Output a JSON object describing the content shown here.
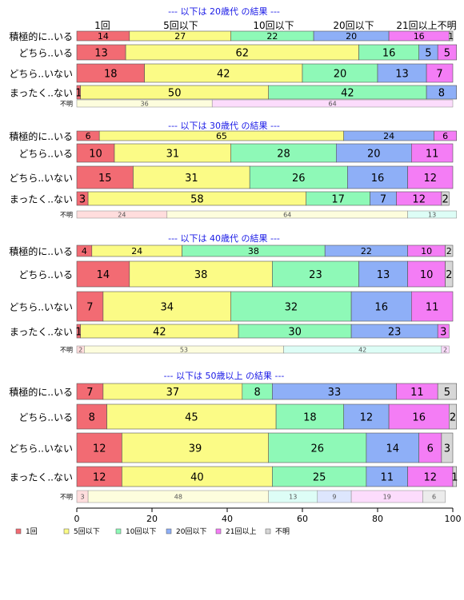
{
  "chart_data": {
    "type": "bar",
    "orientation": "horizontal",
    "stacked": true,
    "xlim": [
      0,
      100
    ],
    "x_ticks": [
      "0",
      "20",
      "40",
      "60",
      "80",
      "100"
    ],
    "top_header": [
      "1回",
      "5回以下",
      "10回以下",
      "20回以下",
      "21回以上不明"
    ],
    "legend": {
      "placement": "bottom",
      "entries": [
        "1回",
        "5回以下",
        "10回以下",
        "20回以下",
        "21回以上",
        "不明"
      ]
    },
    "colors": {
      "1回": "#f26b73",
      "5回以下": "#fbfb86",
      "10回以下": "#8ef9b7",
      "20回以下": "#8eaff7",
      "21回以上": "#f47df5",
      "不明": "#d7d7d7"
    },
    "unknown_row_colors": [
      "#ffdddd",
      "#fdfddd",
      "#ddfdf6",
      "#dde6fd",
      "#fcdcfc",
      "#ececec"
    ],
    "panels": [
      {
        "title": "--- 以下は 20歳代 の結果 ---",
        "rows": [
          {
            "label": "積極的に..いる",
            "values": [
              14,
              27,
              22,
              20,
              16,
              1
            ]
          },
          {
            "label": "どちら..いる",
            "values": [
              13,
              62,
              16,
              5,
              5,
              0
            ]
          },
          {
            "label": "どちら..いない",
            "values": [
              18,
              42,
              20,
              13,
              7,
              0
            ]
          },
          {
            "label": "まったく..ない",
            "values": [
              1,
              50,
              42,
              8,
              0,
              0
            ]
          }
        ],
        "unknown": {
          "label": "不明",
          "values": [
            0,
            36,
            0,
            0,
            64,
            0
          ],
          "value_labels": [
            "",
            "36",
            "",
            "",
            "64",
            ""
          ]
        }
      },
      {
        "title": "--- 以下は 30歳代 の結果 ---",
        "rows": [
          {
            "label": "積極的に..いる",
            "values": [
              6,
              65,
              0,
              24,
              6,
              0
            ]
          },
          {
            "label": "どちら..いる",
            "values": [
              10,
              31,
              28,
              20,
              11,
              0
            ]
          },
          {
            "label": "どちら..いない",
            "values": [
              15,
              31,
              26,
              16,
              12,
              0
            ]
          },
          {
            "label": "まったく..ない",
            "values": [
              3,
              58,
              17,
              7,
              12,
              2
            ]
          }
        ],
        "unknown": {
          "label": "不明",
          "values": [
            24,
            64,
            13,
            0,
            0,
            0
          ],
          "value_labels": [
            "24",
            "64",
            "13",
            "",
            "",
            ""
          ]
        }
      },
      {
        "title": "--- 以下は 40歳代 の結果 ---",
        "rows": [
          {
            "label": "積極的に..いる",
            "values": [
              4,
              24,
              38,
              22,
              10,
              2
            ]
          },
          {
            "label": "どちら..いる",
            "values": [
              14,
              38,
              23,
              13,
              10,
              2
            ]
          },
          {
            "label": "どちら..いない",
            "values": [
              7,
              34,
              32,
              16,
              11,
              0
            ]
          },
          {
            "label": "まったく..ない",
            "values": [
              1,
              42,
              30,
              23,
              3,
              0
            ]
          }
        ],
        "unknown": {
          "label": "不明",
          "values": [
            2,
            53,
            42,
            0,
            2,
            0
          ],
          "value_labels": [
            "2",
            "53",
            "42",
            "",
            "2",
            ""
          ]
        }
      },
      {
        "title": "--- 以下は 50歳以上 の結果 ---",
        "rows": [
          {
            "label": "積極的に..いる",
            "values": [
              7,
              37,
              8,
              33,
              11,
              5
            ]
          },
          {
            "label": "どちら..いる",
            "values": [
              8,
              45,
              18,
              12,
              16,
              2
            ]
          },
          {
            "label": "どちら..いない",
            "values": [
              12,
              39,
              26,
              14,
              6,
              3
            ]
          },
          {
            "label": "まったく..ない",
            "values": [
              12,
              40,
              25,
              11,
              12,
              1
            ]
          }
        ],
        "unknown": {
          "label": "不明",
          "values": [
            3,
            48,
            13,
            9,
            19,
            6
          ],
          "value_labels": [
            "3",
            "48",
            "13",
            "9",
            "19",
            "6"
          ]
        }
      }
    ]
  }
}
